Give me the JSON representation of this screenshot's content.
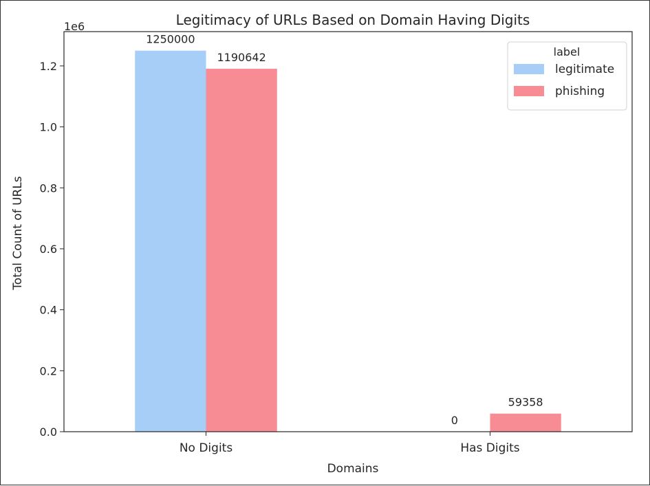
{
  "chart_data": {
    "type": "bar",
    "title": "Legitimacy of URLs Based on Domain Having Digits",
    "xlabel": "Domains",
    "ylabel": "Total Count of URLs",
    "y_offset_label": "1e6",
    "categories": [
      "No Digits",
      "Has Digits"
    ],
    "series": [
      {
        "name": "legitimate",
        "color": "#a6cef7",
        "values": [
          1250000,
          0
        ],
        "labels": [
          "1250000",
          "0"
        ]
      },
      {
        "name": "phishing",
        "color": "#f78c95",
        "values": [
          1190642,
          59358
        ],
        "labels": [
          "1190642",
          "59358"
        ]
      }
    ],
    "ylim": [
      0,
      1312500
    ],
    "yticks": [
      0,
      200000,
      400000,
      600000,
      800000,
      1000000,
      1200000
    ],
    "ytick_labels": [
      "0.0",
      "0.2",
      "0.4",
      "0.6",
      "0.8",
      "1.0",
      "1.2"
    ],
    "grid": false,
    "legend": {
      "title": "label",
      "position": "top-right"
    }
  }
}
